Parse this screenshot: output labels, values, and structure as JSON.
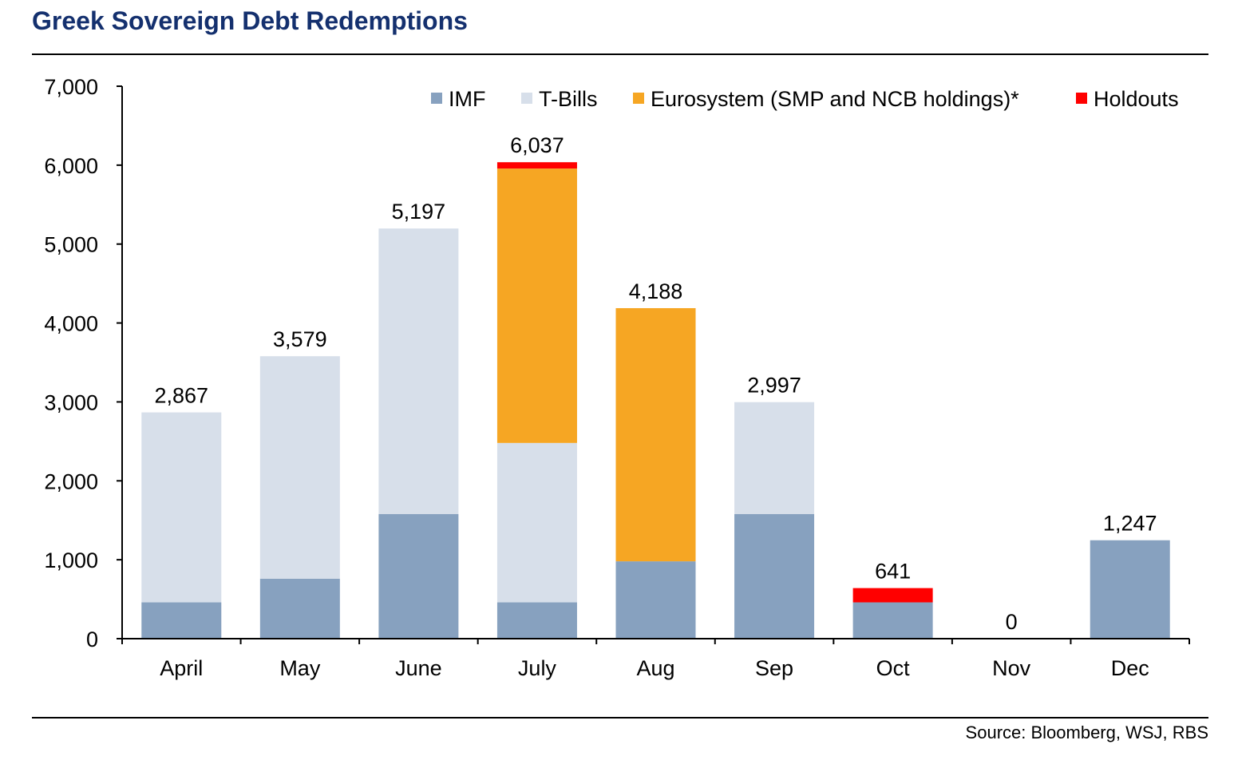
{
  "title": "Greek Sovereign Debt Redemptions",
  "source": "Source:  Bloomberg, WSJ, RBS",
  "chart_data": {
    "type": "bar",
    "stacked": true,
    "title": "Greek Sovereign Debt Redemptions",
    "xlabel": "",
    "ylabel": "",
    "ylim": [
      0,
      7000
    ],
    "yticks": [
      0,
      1000,
      2000,
      3000,
      4000,
      5000,
      6000,
      7000
    ],
    "ytick_labels": [
      "0",
      "1,000",
      "2,000",
      "3,000",
      "4,000",
      "5,000",
      "6,000",
      "7,000"
    ],
    "grid": false,
    "legend_position": "top",
    "categories": [
      "April",
      "May",
      "June",
      "July",
      "Aug",
      "Sep",
      "Oct",
      "Nov",
      "Dec"
    ],
    "series": [
      {
        "name": "IMF",
        "color": "#87a1bf",
        "values": [
          460,
          760,
          1580,
          460,
          980,
          1580,
          460,
          0,
          1247
        ]
      },
      {
        "name": "T-Bills",
        "color": "#d7dfea",
        "values": [
          2407,
          2819,
          3617,
          2020,
          0,
          1417,
          0,
          0,
          0
        ]
      },
      {
        "name": "Eurosystem (SMP and NCB holdings)*",
        "color": "#f6a623",
        "values": [
          0,
          0,
          0,
          3477,
          3208,
          0,
          0,
          0,
          0
        ]
      },
      {
        "name": "Holdouts",
        "color": "#ff0000",
        "values": [
          0,
          0,
          0,
          80,
          0,
          0,
          181,
          0,
          0
        ]
      }
    ],
    "totals": [
      2867,
      3579,
      5197,
      6037,
      4188,
      2997,
      641,
      0,
      1247
    ],
    "total_labels": [
      "2,867",
      "3,579",
      "5,197",
      "6,037",
      "4,188",
      "2,997",
      "641",
      "0",
      "1,247"
    ]
  }
}
